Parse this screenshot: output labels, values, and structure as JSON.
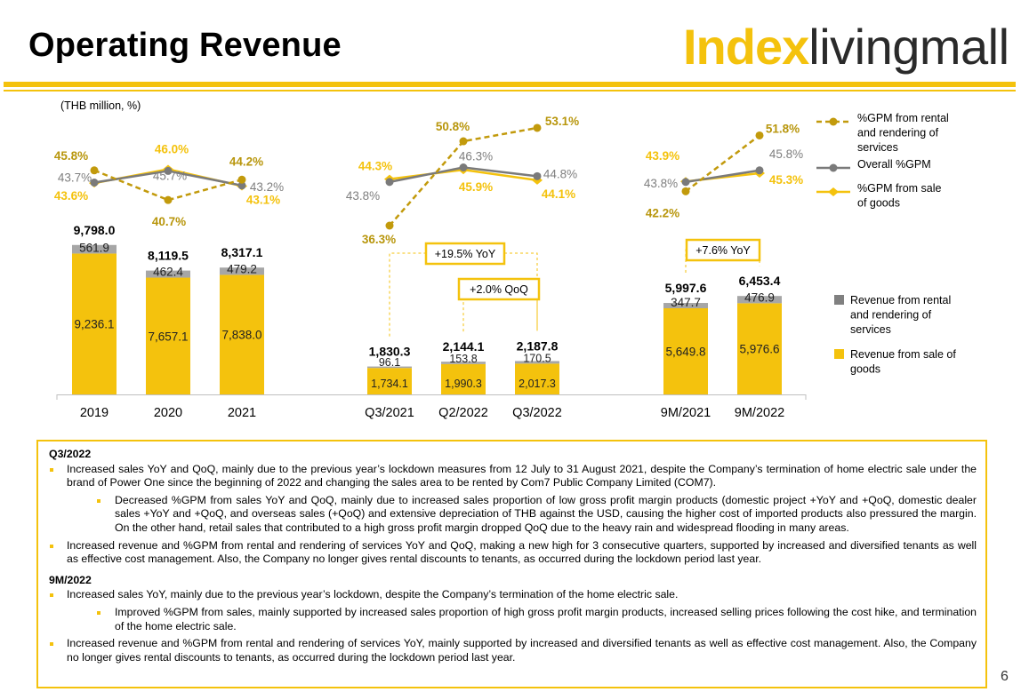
{
  "page": {
    "title": "Operating Revenue",
    "page_number": "6",
    "logo": {
      "bold_text": "Index",
      "light_text": "livingmall"
    }
  },
  "colors": {
    "yellow": "#F4C20D",
    "gold": "#B8960C",
    "gray": "#808080",
    "line_gold": "#C29A0C",
    "line_gray": "#7A7A7A",
    "line_yellow": "#F4C20D"
  },
  "chart_data": {
    "type": "bar",
    "title": "Operating Revenue",
    "unit_label": "(THB million, %)",
    "groups": [
      {
        "name": "annual",
        "categories": [
          "2019",
          "2020",
          "2021"
        ]
      },
      {
        "name": "quarterly",
        "categories": [
          "Q3/2021",
          "Q2/2022",
          "Q3/2022"
        ]
      },
      {
        "name": "nine_month",
        "categories": [
          "9M/2021",
          "9M/2022"
        ]
      }
    ],
    "categories": [
      "2019",
      "2020",
      "2021",
      "Q3/2021",
      "Q2/2022",
      "Q3/2022",
      "9M/2021",
      "9M/2022"
    ],
    "series": [
      {
        "name": "Revenue from sale of goods",
        "values": [
          9236.1,
          7657.1,
          7838.0,
          1734.1,
          1990.3,
          2017.3,
          5649.8,
          5976.6
        ],
        "labels": [
          "9,236.1",
          "7,657.1",
          "7,838.0",
          "1,734.1",
          "1,990.3",
          "2,017.3",
          "5,649.8",
          "5,976.6"
        ]
      },
      {
        "name": "Revenue from rental and rendering of services",
        "values": [
          561.9,
          462.4,
          479.2,
          96.1,
          153.8,
          170.5,
          347.7,
          476.9
        ],
        "labels": [
          "561.9",
          "462.4",
          "479.2",
          "96.1",
          "153.8",
          "170.5",
          "347.7",
          "476.9"
        ]
      }
    ],
    "totals": [
      9798.0,
      8119.5,
      8317.1,
      1830.3,
      2144.1,
      2187.8,
      5997.6,
      6453.4
    ],
    "total_labels": [
      "9,798.0",
      "8,119.5",
      "8,317.1",
      "1,830.3",
      "2,144.1",
      "2,187.8",
      "5,997.6",
      "6,453.4"
    ],
    "ylim": [
      0,
      11000
    ],
    "line_series": [
      {
        "name": "%GPM from rental and rendering of services",
        "values": [
          45.8,
          40.7,
          44.2,
          36.3,
          50.8,
          53.1,
          42.2,
          51.8
        ],
        "labels": [
          "45.8%",
          "40.7%",
          "44.2%",
          "36.3%",
          "50.8%",
          "53.1%",
          "42.2%",
          "51.8%"
        ]
      },
      {
        "name": "Overall %GPM",
        "values": [
          43.7,
          45.7,
          43.2,
          43.8,
          46.3,
          44.8,
          43.8,
          45.8
        ],
        "labels": [
          "43.7%",
          "45.7%",
          "43.2%",
          "43.8%",
          "46.3%",
          "44.8%",
          "43.8%",
          "45.8%"
        ]
      },
      {
        "name": "%GPM from sale of goods",
        "values": [
          43.6,
          46.0,
          43.1,
          44.3,
          45.9,
          44.1,
          43.9,
          45.3
        ],
        "labels": [
          "43.6%",
          "46.0%",
          "43.1%",
          "44.3%",
          "45.9%",
          "44.1%",
          "43.9%",
          "45.3%"
        ]
      }
    ],
    "line_ylim": [
      34,
      56
    ],
    "annotations": [
      {
        "text": "+19.5% YoY",
        "from": "Q3/2021",
        "to": "Q3/2022"
      },
      {
        "text": "+2.0% QoQ",
        "from": "Q2/2022",
        "to": "Q3/2022"
      },
      {
        "text": "+7.6% YoY",
        "from": "9M/2021",
        "to": "9M/2022"
      }
    ],
    "legend": {
      "line_items": [
        {
          "label": [
            "%GPM from rental",
            "and rendering of",
            "services"
          ],
          "series": "%GPM from rental and rendering of services"
        },
        {
          "label": [
            "Overall %GPM"
          ],
          "series": "Overall %GPM"
        },
        {
          "label": [
            "%GPM from sale",
            "of goods"
          ],
          "series": "%GPM from sale of goods"
        }
      ],
      "bar_items": [
        {
          "label": [
            "Revenue from rental",
            "and rendering of",
            "services"
          ],
          "series": "Revenue from rental and rendering of services"
        },
        {
          "label": [
            "Revenue from sale of",
            "goods"
          ],
          "series": "Revenue from sale of goods"
        }
      ],
      "position": "right"
    }
  },
  "notes": {
    "q3_title": "Q3/2022",
    "q3_items": [
      {
        "level": 1,
        "text": "Increased sales YoY and QoQ, mainly due to the previous year’s lockdown measures from 12 July to 31 August 2021, despite the Company’s termination of home electric sale under the brand of Power One since the beginning of 2022 and changing the sales area to be rented by Com7 Public Company Limited (COM7)."
      },
      {
        "level": 2,
        "text": "Decreased %GPM from sales YoY and QoQ, mainly due to increased sales proportion of low gross profit margin products (domestic project +YoY and +QoQ, domestic dealer sales +YoY and +QoQ, and overseas sales (+QoQ) and extensive depreciation of THB against the USD, causing the higher cost of imported products also pressured the margin. On the other hand, retail sales that contributed to a high gross profit margin dropped QoQ due to the heavy rain and widespread flooding in many areas."
      },
      {
        "level": 1,
        "text": "Increased revenue and %GPM from rental and rendering of services YoY and QoQ, making a new high for 3 consecutive quarters, supported by increased and diversified tenants as well as effective cost management. Also, the Company no longer gives rental discounts to tenants, as occurred during the lockdown period last year."
      }
    ],
    "nm_title": "9M/2022",
    "nm_items": [
      {
        "level": 1,
        "text": "Increased sales YoY, mainly due to the previous year’s lockdown, despite the Company’s termination of the home electric sale."
      },
      {
        "level": 2,
        "text": "Improved %GPM from sales, mainly supported by increased sales proportion of high gross profit margin products, increased selling prices following the cost hike, and termination of the home electric sale."
      },
      {
        "level": 1,
        "text": "Increased revenue and %GPM from rental and rendering of services YoY, mainly supported by increased and diversified tenants as well as effective cost management. Also, the Company no longer gives rental discounts to tenants, as occurred during the lockdown period last year."
      }
    ]
  }
}
